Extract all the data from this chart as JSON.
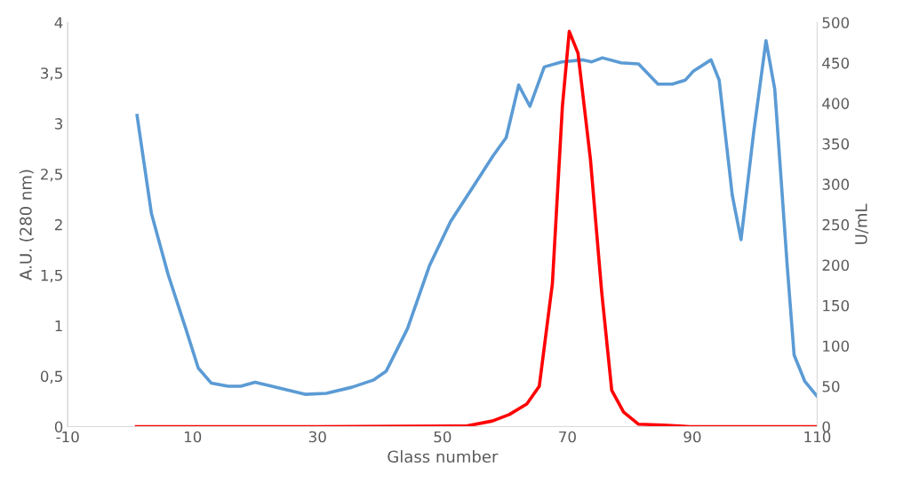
{
  "chart_data": {
    "type": "line",
    "xlabel": "Glass number",
    "ylabel": "A.U. (280 nm)",
    "y2label": "U/mL",
    "xlim": [
      -10,
      110
    ],
    "xticks": [
      -10,
      10,
      30,
      50,
      70,
      90,
      110
    ],
    "ylim": [
      0,
      4
    ],
    "yticks": [
      0,
      {
        "value": 0.5,
        "label": "0,5"
      },
      1,
      {
        "value": 1.5,
        "label": "1,5"
      },
      2,
      {
        "value": 2.5,
        "label": "2,5"
      },
      3,
      {
        "value": 3.5,
        "label": "3,5"
      },
      4
    ],
    "y2lim": [
      0,
      500
    ],
    "y2ticks": [
      0,
      50,
      100,
      150,
      200,
      250,
      300,
      350,
      400,
      450,
      500
    ],
    "grid": false,
    "legend": false,
    "marker": "none",
    "line_style": "solid",
    "series": [
      {
        "color": "#5b9bd5",
        "x": [
          1.1,
          3.4,
          6.1,
          8.9,
          10.9,
          13,
          15.7,
          17.7,
          20,
          24,
          28,
          31.4,
          35.5,
          38.9,
          41,
          44.4,
          47.9,
          51.3,
          55.4,
          58.1,
          60.2,
          62.2,
          64,
          66.3,
          69.1,
          72.5,
          73.9,
          75.6,
          78.6,
          81.4,
          84.5,
          86.8,
          88.9,
          90.2,
          93,
          94.3,
          96.4,
          97.8,
          99.8,
          101.8,
          103.2,
          105.2,
          106.3,
          108,
          110
        ],
        "values": [
          3.08,
          2.11,
          1.5,
          0.97,
          0.58,
          0.43,
          0.4,
          0.4,
          0.44,
          0.38,
          0.32,
          0.33,
          0.39,
          0.46,
          0.55,
          0.97,
          1.59,
          2.03,
          2.42,
          2.68,
          2.86,
          3.38,
          3.17,
          3.56,
          3.61,
          3.63,
          3.61,
          3.65,
          3.6,
          3.59,
          3.39,
          3.39,
          3.43,
          3.52,
          3.63,
          3.43,
          2.29,
          1.85,
          2.9,
          3.82,
          3.34,
          1.59,
          0.71,
          0.45,
          0.3
        ]
      },
      {
        "color": "#ff0000",
        "axis": "y2",
        "x": [
          1,
          30,
          54,
          58,
          60.7,
          63.5,
          65.5,
          67.6,
          69.2,
          70.3,
          71.7,
          73.7,
          75.5,
          77.1,
          79,
          81.4,
          85.4,
          89.5,
          110
        ],
        "values": [
          0,
          0,
          1,
          7,
          15,
          28,
          50,
          177,
          396,
          489,
          462,
          330,
          166,
          45,
          18,
          3,
          2,
          0,
          0
        ]
      }
    ]
  }
}
